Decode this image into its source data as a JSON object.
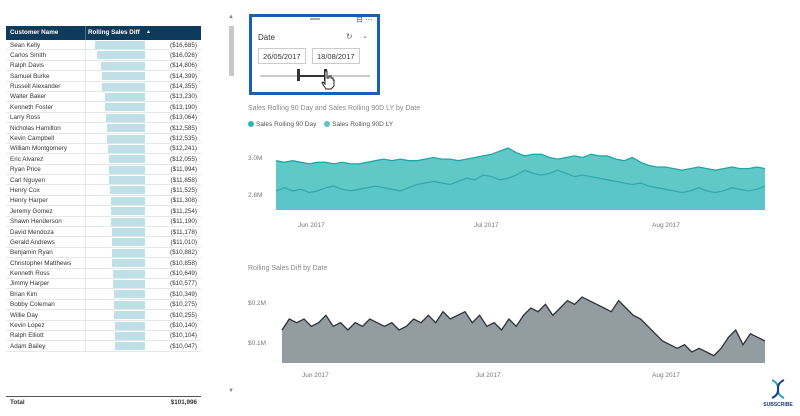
{
  "table": {
    "header_name": "Customer Name",
    "header_diff": "Rolling Sales Diff",
    "sort_glyph": "▲",
    "rows": [
      {
        "name": "Sean Kelly",
        "value": "($16,685)",
        "amount": 16685
      },
      {
        "name": "Carlos Smith",
        "value": "($16,026)",
        "amount": 16026
      },
      {
        "name": "Ralph Davis",
        "value": "($14,806)",
        "amount": 14806
      },
      {
        "name": "Samuel Burke",
        "value": "($14,399)",
        "amount": 14399
      },
      {
        "name": "Russell Alexander",
        "value": "($14,355)",
        "amount": 14355
      },
      {
        "name": "Walter Baker",
        "value": "($13,230)",
        "amount": 13230
      },
      {
        "name": "Kenneth Foster",
        "value": "($13,190)",
        "amount": 13190
      },
      {
        "name": "Larry Ross",
        "value": "($13,064)",
        "amount": 13064
      },
      {
        "name": "Nicholas Hamilton",
        "value": "($12,585)",
        "amount": 12585
      },
      {
        "name": "Kevin Campbell",
        "value": "($12,535)",
        "amount": 12535
      },
      {
        "name": "William Montgomery",
        "value": "($12,241)",
        "amount": 12241
      },
      {
        "name": "Eric Alvarez",
        "value": "($12,055)",
        "amount": 12055
      },
      {
        "name": "Ryan Price",
        "value": "($11,994)",
        "amount": 11994
      },
      {
        "name": "Carl Nguyen",
        "value": "($11,858)",
        "amount": 11858
      },
      {
        "name": "Henry Cox",
        "value": "($11,525)",
        "amount": 11525
      },
      {
        "name": "Henry Harper",
        "value": "($11,308)",
        "amount": 11308
      },
      {
        "name": "Jeremy Gomez",
        "value": "($11,254)",
        "amount": 11254
      },
      {
        "name": "Shawn Henderson",
        "value": "($11,190)",
        "amount": 11190
      },
      {
        "name": "David Mendoza",
        "value": "($11,178)",
        "amount": 11178
      },
      {
        "name": "Gerald Andrews",
        "value": "($11,010)",
        "amount": 11010
      },
      {
        "name": "Benjamin Ryan",
        "value": "($10,882)",
        "amount": 10882
      },
      {
        "name": "Christopher Matthews",
        "value": "($10,858)",
        "amount": 10858
      },
      {
        "name": "Kenneth Ross",
        "value": "($10,649)",
        "amount": 10649
      },
      {
        "name": "Jimmy Harper",
        "value": "($10,577)",
        "amount": 10577
      },
      {
        "name": "Brian Kim",
        "value": "($10,349)",
        "amount": 10349
      },
      {
        "name": "Bobby Coleman",
        "value": "($10,275)",
        "amount": 10275
      },
      {
        "name": "Willie Day",
        "value": "($10,255)",
        "amount": 10255
      },
      {
        "name": "Kevin Lopez",
        "value": "($10,140)",
        "amount": 10140
      },
      {
        "name": "Ralph Elliott",
        "value": "($10,104)",
        "amount": 10104
      },
      {
        "name": "Adam Bailey",
        "value": "($10,047)",
        "amount": 10047
      }
    ],
    "total_label": "Total",
    "total_value": "$101,996",
    "bar_color": "#bfe0e6"
  },
  "slicer": {
    "title": "Date",
    "start": "26/05/2017",
    "end": "18/08/2017",
    "reset_glyph": "↻",
    "chevron_glyph": "⌄",
    "tools_glyph": "⊟ ···",
    "cursor_icon": "hand-pointer-icon"
  },
  "subscribe": {
    "label": "SUBSCRIBE",
    "icon": "dna-icon"
  },
  "chart_data": [
    {
      "type": "area",
      "title": "Sales Rolling 90 Day and Sales Rolling 90D LY by Date",
      "x_ticks": [
        "Jun 2017",
        "Jul 2017",
        "Aug 2017"
      ],
      "y_ticks": [
        "3.0M",
        "2.8M"
      ],
      "ylim": [
        2.68,
        3.12
      ],
      "legend": "top-left",
      "series": [
        {
          "name": "Sales Rolling 90 Day",
          "color": "#2bb7b5",
          "values": [
            2.99,
            2.98,
            2.99,
            2.98,
            2.97,
            2.98,
            2.98,
            2.97,
            2.98,
            2.97,
            2.97,
            2.98,
            2.99,
            3.0,
            2.99,
            3.0,
            2.99,
            2.99,
            3.0,
            3.01,
            3.0,
            3.0,
            2.99,
            3.0,
            3.01,
            3.02,
            3.03,
            3.05,
            3.07,
            3.04,
            3.02,
            3.03,
            3.03,
            3.01,
            3.0,
            3.01,
            3.02,
            3.01,
            3.03,
            3.02,
            3.02,
            3.0,
            2.99,
            3.01,
            2.98,
            2.96,
            2.95,
            2.95,
            2.94,
            2.93,
            2.94,
            2.95,
            2.94,
            2.93,
            2.94,
            2.95,
            2.94,
            2.94,
            2.95,
            2.94
          ]
        },
        {
          "name": "Sales Rolling 90D LY",
          "color": "#5bc4c8",
          "values": [
            2.8,
            2.82,
            2.8,
            2.81,
            2.79,
            2.8,
            2.82,
            2.83,
            2.81,
            2.8,
            2.81,
            2.82,
            2.83,
            2.82,
            2.81,
            2.8,
            2.82,
            2.84,
            2.85,
            2.86,
            2.85,
            2.84,
            2.86,
            2.88,
            2.87,
            2.9,
            2.89,
            2.87,
            2.88,
            2.9,
            2.93,
            2.91,
            2.9,
            2.91,
            2.93,
            2.91,
            2.89,
            2.9,
            2.89,
            2.88,
            2.87,
            2.86,
            2.85,
            2.84,
            2.85,
            2.83,
            2.82,
            2.81,
            2.8,
            2.79,
            2.8,
            2.82,
            2.8,
            2.79,
            2.8,
            2.82,
            2.81,
            2.8,
            2.81,
            2.83
          ]
        }
      ]
    },
    {
      "type": "area",
      "title": "Rolling Sales Diff by Date",
      "x_ticks": [
        "Jun 2017",
        "Jul 2017",
        "Aug 2017"
      ],
      "y_ticks": [
        "$0.2M",
        "$0.1M"
      ],
      "ylim": [
        0.05,
        0.26
      ],
      "series": [
        {
          "color": "#8d979b",
          "values": [
            0.14,
            0.17,
            0.16,
            0.17,
            0.15,
            0.16,
            0.18,
            0.15,
            0.16,
            0.14,
            0.16,
            0.15,
            0.17,
            0.16,
            0.15,
            0.16,
            0.14,
            0.15,
            0.17,
            0.16,
            0.18,
            0.16,
            0.19,
            0.17,
            0.18,
            0.19,
            0.16,
            0.18,
            0.15,
            0.16,
            0.14,
            0.17,
            0.15,
            0.18,
            0.2,
            0.19,
            0.21,
            0.18,
            0.2,
            0.22,
            0.21,
            0.23,
            0.22,
            0.21,
            0.2,
            0.19,
            0.22,
            0.2,
            0.18,
            0.17,
            0.15,
            0.13,
            0.11,
            0.1,
            0.09,
            0.1,
            0.08,
            0.09,
            0.08,
            0.07,
            0.09,
            0.12,
            0.14,
            0.1,
            0.13,
            0.12,
            0.11
          ]
        }
      ]
    }
  ]
}
